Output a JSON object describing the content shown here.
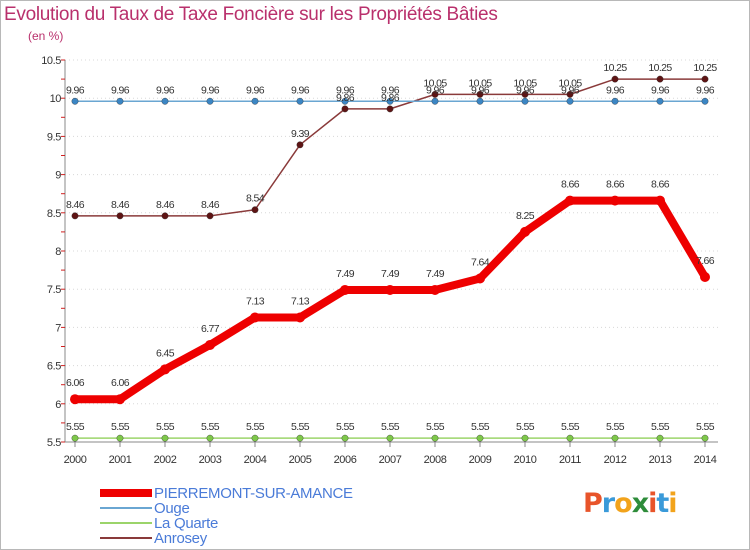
{
  "title": "Evolution du Taux de Taxe Foncière sur les Propriétés Bâties",
  "subtitle": "(en %)",
  "logo": {
    "text": [
      "P",
      "r",
      "o",
      "x",
      "i",
      "t",
      "i"
    ],
    "colors": [
      "#e8542a",
      "#3a9ad9",
      "#f2a31b",
      "#2e8c3a",
      "#e8542a",
      "#3a9ad9",
      "#f2a31b"
    ]
  },
  "chart_data": {
    "type": "line",
    "title": "Evolution du Taux de Taxe Foncière sur les Propriétés Bâties",
    "ylabel": "(en %)",
    "x": [
      2000,
      2001,
      2002,
      2003,
      2004,
      2005,
      2006,
      2007,
      2008,
      2009,
      2010,
      2011,
      2012,
      2013,
      2014
    ],
    "ylim": [
      5.5,
      10.5
    ],
    "yticks": [
      5.5,
      6,
      6.5,
      7,
      7.5,
      8,
      8.5,
      9,
      9.5,
      10,
      10.5
    ],
    "series": [
      {
        "name": "PIERREMONT-SUR-AMANCE",
        "color": "#ee0000",
        "marker": "#ee0000",
        "width": 8,
        "values": [
          6.06,
          6.06,
          6.45,
          6.77,
          7.13,
          7.13,
          7.49,
          7.49,
          7.49,
          7.64,
          8.25,
          8.66,
          8.66,
          8.66,
          7.66
        ],
        "labels": [
          "6.06",
          "6.06",
          "6.45",
          "6.77",
          "7.13",
          "7.13",
          "7.49",
          "7.49",
          "7.49",
          "7.64",
          "8.25",
          "8.66",
          "8.66",
          "8.66",
          "7.66"
        ]
      },
      {
        "name": "Ouge",
        "color": "#6aa6d2",
        "marker": "#3b86c4",
        "width": 1.5,
        "values": [
          9.96,
          9.96,
          9.96,
          9.96,
          9.96,
          9.96,
          9.96,
          9.96,
          9.96,
          9.96,
          9.96,
          9.96,
          9.96,
          9.96,
          9.96
        ],
        "labels": [
          "9.96",
          "9.96",
          "9.96",
          "9.96",
          "9.96",
          "9.96",
          "9.96",
          "9.96",
          "9.96",
          "9.96",
          "9.96",
          "9.96",
          "9.96",
          "9.96",
          "9.96"
        ]
      },
      {
        "name": "La Quarte",
        "color": "#9bd46a",
        "marker": "#7ec84a",
        "width": 1.5,
        "values": [
          5.55,
          5.55,
          5.55,
          5.55,
          5.55,
          5.55,
          5.55,
          5.55,
          5.55,
          5.55,
          5.55,
          5.55,
          5.55,
          5.55,
          5.55
        ],
        "labels": [
          "5.55",
          "5.55",
          "5.55",
          "5.55",
          "5.55",
          "5.55",
          "5.55",
          "5.55",
          "5.55",
          "5.55",
          "5.55",
          "5.55",
          "5.55",
          "5.55",
          "5.55"
        ]
      },
      {
        "name": "Anrosey",
        "color": "#8a3a3a",
        "marker": "#5e1414",
        "width": 1.5,
        "values": [
          8.46,
          8.46,
          8.46,
          8.46,
          8.54,
          9.39,
          9.86,
          9.86,
          10.05,
          10.05,
          10.05,
          10.05,
          10.25,
          10.25,
          10.25
        ],
        "labels": [
          "8.46",
          "8.46",
          "8.46",
          "8.46",
          "8.54",
          "9.39",
          "9.86",
          "9.86",
          "10.05",
          "10.05",
          "10.05",
          "10.05",
          "10.25",
          "10.25",
          "10.25"
        ]
      }
    ]
  }
}
